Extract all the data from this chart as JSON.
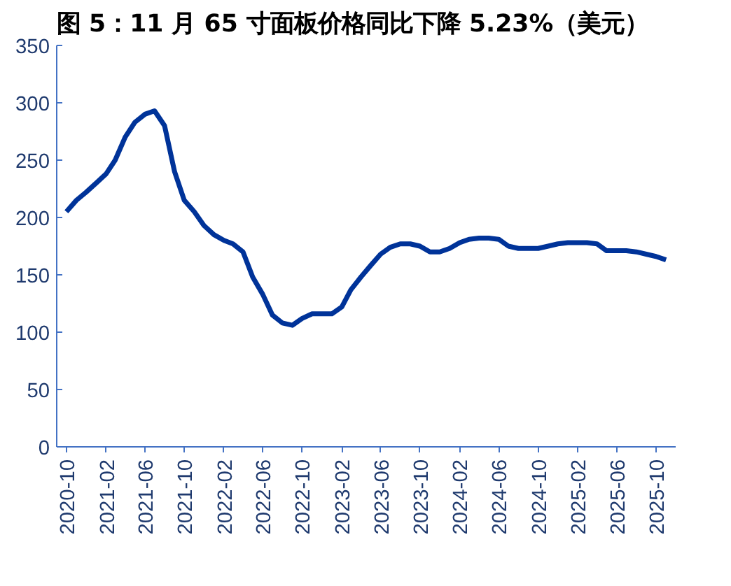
{
  "chart_data": {
    "type": "line",
    "title": "图 5：11 月 65 寸面板价格同比下降 5.23%（美元）",
    "x": [
      "2020-10",
      "2020-11",
      "2020-12",
      "2021-01",
      "2021-02",
      "2021-03",
      "2021-04",
      "2021-05",
      "2021-06",
      "2021-07",
      "2021-08",
      "2021-09",
      "2021-10",
      "2021-11",
      "2021-12",
      "2022-01",
      "2022-02",
      "2022-03",
      "2022-04",
      "2022-05",
      "2022-06",
      "2022-07",
      "2022-08",
      "2022-09",
      "2022-10",
      "2022-11",
      "2022-12",
      "2023-01",
      "2023-02",
      "2023-03",
      "2023-04",
      "2023-05",
      "2023-06",
      "2023-07",
      "2023-08",
      "2023-09",
      "2023-10",
      "2023-11",
      "2023-12",
      "2024-01",
      "2024-02",
      "2024-03",
      "2024-04",
      "2024-05",
      "2024-06",
      "2024-07",
      "2024-08",
      "2024-09",
      "2024-10",
      "2024-11",
      "2024-12",
      "2025-01",
      "2025-02",
      "2025-03",
      "2025-04",
      "2025-05",
      "2025-06",
      "2025-07",
      "2025-08",
      "2025-09",
      "2025-10",
      "2025-11"
    ],
    "series": [
      {
        "color": "#003399",
        "values": [
          205,
          215,
          222,
          230,
          238,
          250,
          270,
          283,
          290,
          293,
          280,
          240,
          215,
          205,
          193,
          185,
          180,
          177,
          170,
          148,
          133,
          115,
          108,
          106,
          112,
          116,
          116,
          116,
          122,
          137,
          148,
          158,
          168,
          174,
          177,
          177,
          175,
          170,
          170,
          173,
          178,
          181,
          182,
          182,
          181,
          175,
          173,
          173,
          173,
          175,
          177,
          178,
          178,
          178,
          177,
          171,
          171,
          171,
          170,
          168,
          166,
          163
        ]
      }
    ],
    "xlim": [
      "2020-09",
      "2025-12"
    ],
    "xticks": [
      "2020-10",
      "2021-02",
      "2021-06",
      "2021-10",
      "2022-02",
      "2022-06",
      "2022-10",
      "2023-02",
      "2023-06",
      "2023-10",
      "2024-02",
      "2024-06",
      "2024-10",
      "2025-02",
      "2025-06",
      "2025-10"
    ],
    "ylim": [
      0,
      350
    ],
    "yticks": [
      0,
      50,
      100,
      150,
      200,
      250,
      300,
      350
    ],
    "grid": false
  }
}
